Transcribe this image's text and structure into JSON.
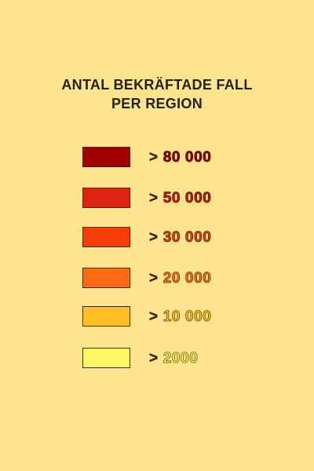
{
  "legend": {
    "title_line1": "ANTAL BEKRÄFTADE FALL",
    "title_line2": "PER REGION",
    "items": [
      {
        "symbol": ">",
        "value": "80 000",
        "swatch_color": "#A00000",
        "text_color": "#A00000",
        "outline_color": "#3a0a00"
      },
      {
        "symbol": ">",
        "value": "50 000",
        "swatch_color": "#DC2410",
        "text_color": "#C81E0E",
        "outline_color": "#4a1200"
      },
      {
        "symbol": ">",
        "value": "30 000",
        "swatch_color": "#F53D0A",
        "text_color": "#E8400C",
        "outline_color": "#5a1a00"
      },
      {
        "symbol": ">",
        "value": "20 000",
        "swatch_color": "#FF6A14",
        "text_color": "#FF7418",
        "outline_color": "#6a2c00"
      },
      {
        "symbol": ">",
        "value": "10 000",
        "swatch_color": "#FFBE23",
        "text_color": "#FFC22A",
        "outline_color": "#6a4a00"
      },
      {
        "symbol": ">",
        "value": "2000",
        "swatch_color": "#FFF764",
        "text_color": "#FFF570",
        "outline_color": "#6a6000"
      }
    ]
  }
}
